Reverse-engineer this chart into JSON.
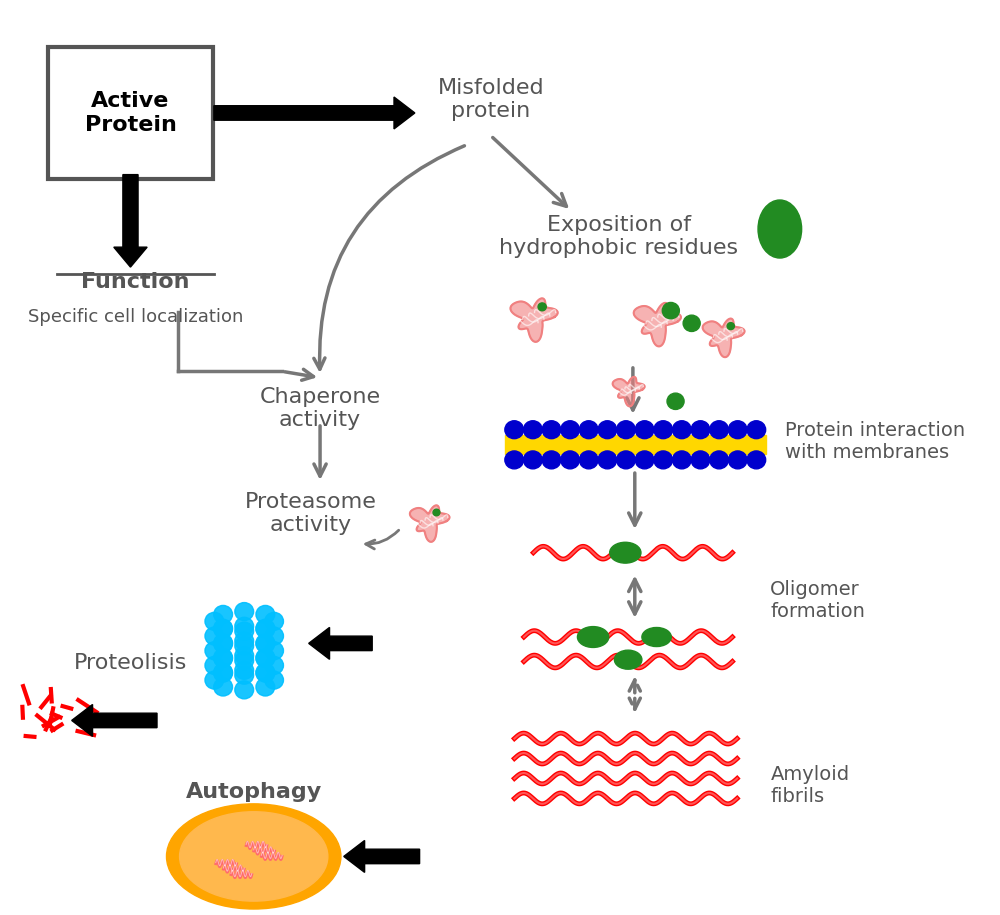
{
  "bg_color": "#ffffff",
  "text_color_dark_gray": "#555555",
  "text_color_black": "#000000",
  "salmon_protein_color": "#F08080",
  "green_dot_color": "#228B22",
  "blue_membrane_color": "#0000CD",
  "yellow_membrane_color": "#FFD700",
  "red_fibril_color": "#FF0000",
  "blue_proteasome_color": "#00BFFF",
  "orange_autophagy_color": "#FFA500",
  "gray_arrow_color": "#777777",
  "dark_gray_text": "#555555",
  "figsize": [
    10.0,
    9.15
  ],
  "dpi": 100,
  "labels": {
    "active_protein": "Active\nProtein",
    "misfolded_protein": "Misfolded\nprotein",
    "exposition": "Exposition of\nhydrophobic residues",
    "function": "Function",
    "specific_cell": "Specific cell localization",
    "chaperone": "Chaperone\nactivity",
    "proteasome": "Proteasome\nactivity",
    "protein_interaction": "Protein interaction\nwith membranes",
    "oligomer": "Oligomer\nformation",
    "amyloid": "Amyloid\nfibrils",
    "proteolisis": "Proteolisis",
    "autophagy": "Autophagy"
  }
}
